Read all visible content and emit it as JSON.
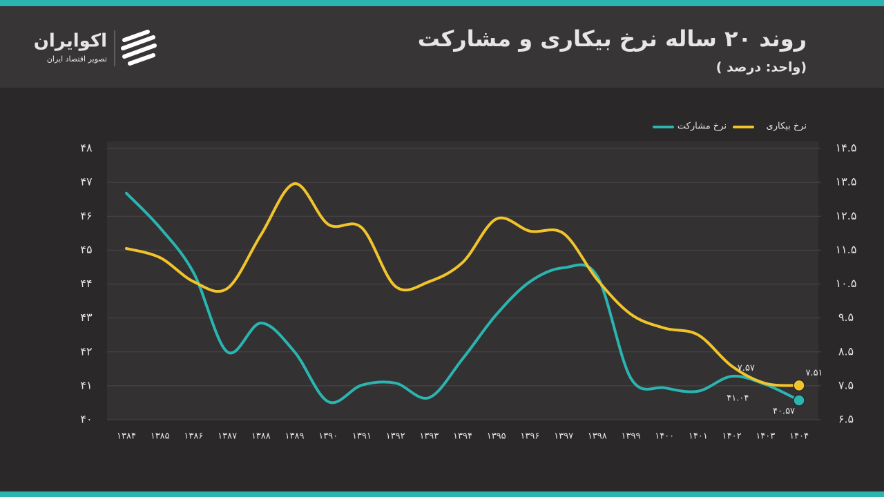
{
  "header": {
    "title": "روند ۲۰ ساله نرخ بیکاری و مشارکت",
    "subtitle": "( واحد: درصد)",
    "brand": "اکوایران",
    "tagline": "تصویر اقتصاد ایران"
  },
  "chart_data": {
    "type": "line",
    "categories": [
      "۱۳۸۴",
      "۱۳۸۵",
      "۱۳۸۶",
      "۱۳۸۷",
      "۱۳۸۸",
      "۱۳۸۹",
      "۱۳۹۰",
      "۱۳۹۱",
      "۱۳۹۲",
      "۱۳۹۳",
      "۱۳۹۴",
      "۱۳۹۵",
      "۱۳۹۶",
      "۱۳۹۷",
      "۱۳۹۸",
      "۱۳۹۹",
      "۱۴۰۰",
      "۱۴۰۱",
      "۱۴۰۲",
      "۱۴۰۳",
      "۱۴۰۴"
    ],
    "series": [
      {
        "name": "نرخ مشارکت",
        "color": "#2ab5b0",
        "axis": "y",
        "values": [
          46.68,
          45.66,
          44.33,
          42.0,
          42.85,
          42.0,
          40.53,
          41.02,
          41.08,
          40.65,
          41.8,
          43.1,
          44.07,
          44.48,
          44.23,
          41.22,
          40.94,
          40.84,
          41.28,
          41.04,
          40.57
        ],
        "value_labels": [
          null,
          null,
          null,
          null,
          null,
          null,
          null,
          null,
          null,
          null,
          null,
          null,
          null,
          null,
          null,
          null,
          null,
          null,
          null,
          "۴۱.۰۴",
          "۴۰.۵۷"
        ]
      },
      {
        "name": "نرخ بیکاری",
        "color": "#f2c42c",
        "axis": "y2",
        "values": [
          11.55,
          11.28,
          10.57,
          10.37,
          11.95,
          13.46,
          12.26,
          12.16,
          10.43,
          10.57,
          11.14,
          12.42,
          12.06,
          11.99,
          10.63,
          9.61,
          9.2,
          9.0,
          8.08,
          7.57,
          7.51
        ],
        "value_labels": [
          null,
          null,
          null,
          null,
          null,
          null,
          null,
          null,
          null,
          null,
          null,
          null,
          null,
          null,
          null,
          null,
          null,
          null,
          null,
          "۷.۵۷",
          "۷.۵۱"
        ]
      }
    ],
    "ylim": [
      40,
      48
    ],
    "yticks": [
      {
        "value": 40,
        "label": "۴۰"
      },
      {
        "value": 41,
        "label": "۴۱"
      },
      {
        "value": 42,
        "label": "۴۲"
      },
      {
        "value": 43,
        "label": "۴۳"
      },
      {
        "value": 44,
        "label": "۴۴"
      },
      {
        "value": 45,
        "label": "۴۵"
      },
      {
        "value": 46,
        "label": "۴۶"
      },
      {
        "value": 47,
        "label": "۴۷"
      },
      {
        "value": 48,
        "label": "۴۸"
      }
    ],
    "y2lim": [
      6.5,
      14.5
    ],
    "y2ticks": [
      {
        "value": 6.5,
        "label": "۶.۵"
      },
      {
        "value": 7.5,
        "label": "۷.۵"
      },
      {
        "value": 8.5,
        "label": "۸.۵"
      },
      {
        "value": 9.5,
        "label": "۹.۵"
      },
      {
        "value": 10.5,
        "label": "۱۰.۵"
      },
      {
        "value": 11.5,
        "label": "۱۱.۵"
      },
      {
        "value": 12.5,
        "label": "۱۲.۵"
      },
      {
        "value": 13.5,
        "label": "۱۳.۵"
      },
      {
        "value": 14.5,
        "label": "۱۴.۵"
      }
    ],
    "grid": true
  }
}
